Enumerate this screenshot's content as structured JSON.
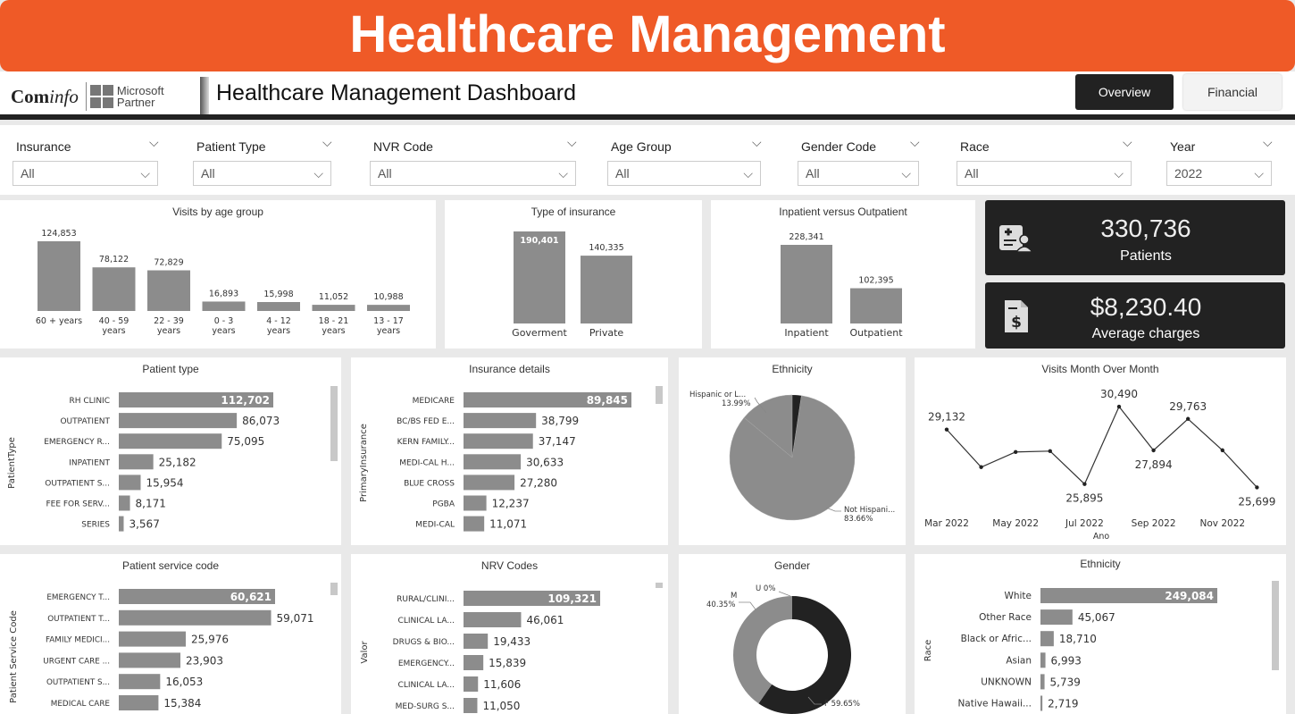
{
  "banner": {
    "title": "Healthcare Management"
  },
  "header": {
    "logo_com": "Com",
    "logo_info": "info",
    "ms_line1": "Microsoft",
    "ms_line2": "Partner",
    "title": "Healthcare Management Dashboard",
    "nav": [
      "Overview",
      "Financial"
    ]
  },
  "filters": [
    {
      "label": "Insurance",
      "value": "All"
    },
    {
      "label": "Patient Type",
      "value": "All"
    },
    {
      "label": "NVR Code",
      "value": "All"
    },
    {
      "label": "Age Group",
      "value": "All"
    },
    {
      "label": "Gender Code",
      "value": "All"
    },
    {
      "label": "Race",
      "value": "All"
    },
    {
      "label": "Year",
      "value": "2022"
    }
  ],
  "kpis": [
    {
      "value": "330,736",
      "label": "Patients",
      "icon": "patient-id-icon"
    },
    {
      "value": "$8,230.40",
      "label": "Average charges",
      "icon": "bill-dollar-icon"
    }
  ],
  "colors": {
    "bar": "#8c8c8c",
    "dark": "#222222",
    "accent": "#ef5a27"
  },
  "chart_data": [
    {
      "id": "age",
      "type": "bar",
      "title": "Visits by age group",
      "categories": [
        "60 + years",
        "40 - 59 years",
        "22 - 39 years",
        "0 - 3 years",
        "4 - 12 years",
        "18 - 21 years",
        "13 - 17 years"
      ],
      "values": [
        124853,
        78122,
        72829,
        16893,
        15998,
        11052,
        10988
      ],
      "labels": [
        "124,853",
        "78,122",
        "72,829",
        "16,893",
        "15,998",
        "11,052",
        "10,988"
      ]
    },
    {
      "id": "ins",
      "type": "bar",
      "title": "Type of insurance",
      "categories": [
        "Goverment",
        "Private"
      ],
      "values": [
        190401,
        140335
      ],
      "labels": [
        "190,401",
        "140,335"
      ]
    },
    {
      "id": "inout",
      "type": "bar",
      "title": "Inpatient versus Outpatient",
      "categories": [
        "Inpatient",
        "Outpatient"
      ],
      "values": [
        228341,
        102395
      ],
      "labels": [
        "228,341",
        "102,395"
      ]
    },
    {
      "id": "ptype",
      "type": "bar",
      "orientation": "horizontal",
      "title": "Patient type",
      "ylabel": "PatientType",
      "categories": [
        "RH CLINIC",
        "OUTPATIENT",
        "EMERGENCY R...",
        "INPATIENT",
        "OUTPATIENT S...",
        "FEE FOR SERV...",
        "SERIES"
      ],
      "values": [
        112702,
        86073,
        75095,
        25182,
        15954,
        8171,
        3567
      ],
      "labels": [
        "112,702",
        "86,073",
        "75,095",
        "25,182",
        "15,954",
        "8,171",
        "3,567"
      ]
    },
    {
      "id": "insdet",
      "type": "bar",
      "orientation": "horizontal",
      "title": "Insurance details",
      "ylabel": "PrimaryInsurance",
      "categories": [
        "MEDICARE",
        "BC/BS FED E...",
        "KERN FAMILY...",
        "MEDI-CAL H...",
        "BLUE CROSS",
        "PGBA",
        "MEDI-CAL"
      ],
      "values": [
        89845,
        38799,
        37147,
        30633,
        27280,
        12237,
        11071
      ],
      "labels": [
        "89,845",
        "38,799",
        "37,147",
        "30,633",
        "27,280",
        "12,237",
        "11,071"
      ]
    },
    {
      "id": "eth",
      "type": "pie",
      "title": "Ethnicity",
      "categories": [
        "Hispanic or L...",
        "Not Hispani..."
      ],
      "values": [
        13.99,
        83.66
      ],
      "labels": [
        "13.99%",
        "83.66%"
      ]
    },
    {
      "id": "mom",
      "type": "line",
      "title": "Visits Month Over Month",
      "xlabel": "Ano",
      "x": [
        "Mar 2022",
        "Apr 2022",
        "May 2022",
        "Jun 2022",
        "Jul 2022",
        "Aug 2022",
        "Sep 2022",
        "Oct 2022",
        "Nov 2022",
        "Dec 2022"
      ],
      "tick_labels": [
        "Mar 2022",
        "May 2022",
        "Jul 2022",
        "Sep 2022",
        "Nov 2022"
      ],
      "values": [
        29132,
        26900,
        27800,
        27850,
        25895,
        30490,
        27894,
        29763,
        27900,
        25699
      ],
      "point_labels": [
        "29,132",
        "",
        "",
        "",
        "25,895",
        "30,490",
        "27,894",
        "29,763",
        "",
        "25,699"
      ]
    },
    {
      "id": "psc",
      "type": "bar",
      "orientation": "horizontal",
      "title": "Patient service code",
      "ylabel": "Patient Service Code",
      "categories": [
        "EMERGENCY T...",
        "OUTPATIENT T...",
        "FAMILY MEDICI...",
        "URGENT CARE ...",
        "OUTPATIENT S...",
        "MEDICAL CARE"
      ],
      "values": [
        60621,
        59071,
        25976,
        23903,
        16053,
        15384
      ],
      "labels": [
        "60,621",
        "59,071",
        "25,976",
        "23,903",
        "16,053",
        "15,384"
      ]
    },
    {
      "id": "nrv",
      "type": "bar",
      "orientation": "horizontal",
      "title": "NRV Codes",
      "ylabel": "Valor",
      "categories": [
        "RURAL/CLINI...",
        "CLINICAL LA...",
        "DRUGS & BIO...",
        "EMERGENCY...",
        "CLINICAL LA...",
        "MED-SURG S..."
      ],
      "values": [
        109321,
        46061,
        19433,
        15839,
        11606,
        11050
      ],
      "labels": [
        "109,321",
        "46,061",
        "19,433",
        "15,839",
        "11,606",
        "11,050"
      ]
    },
    {
      "id": "gender",
      "type": "pie",
      "title": "Gender",
      "donut": true,
      "categories": [
        "F",
        "M",
        "U"
      ],
      "values": [
        59.65,
        40.35,
        0
      ],
      "labels": [
        "F 59.65%",
        "M\n40.35%",
        "U 0%"
      ]
    },
    {
      "id": "race",
      "type": "bar",
      "orientation": "horizontal",
      "title": "Ethnicity",
      "ylabel": "Race",
      "categories": [
        "White",
        "Other Race",
        "Black or Afric...",
        "Asian",
        "UNKNOWN",
        "Native Hawaii..."
      ],
      "values": [
        249084,
        45067,
        18710,
        6993,
        5739,
        2719
      ],
      "labels": [
        "249,084",
        "45,067",
        "18,710",
        "6,993",
        "5,739",
        "2,719"
      ]
    }
  ]
}
